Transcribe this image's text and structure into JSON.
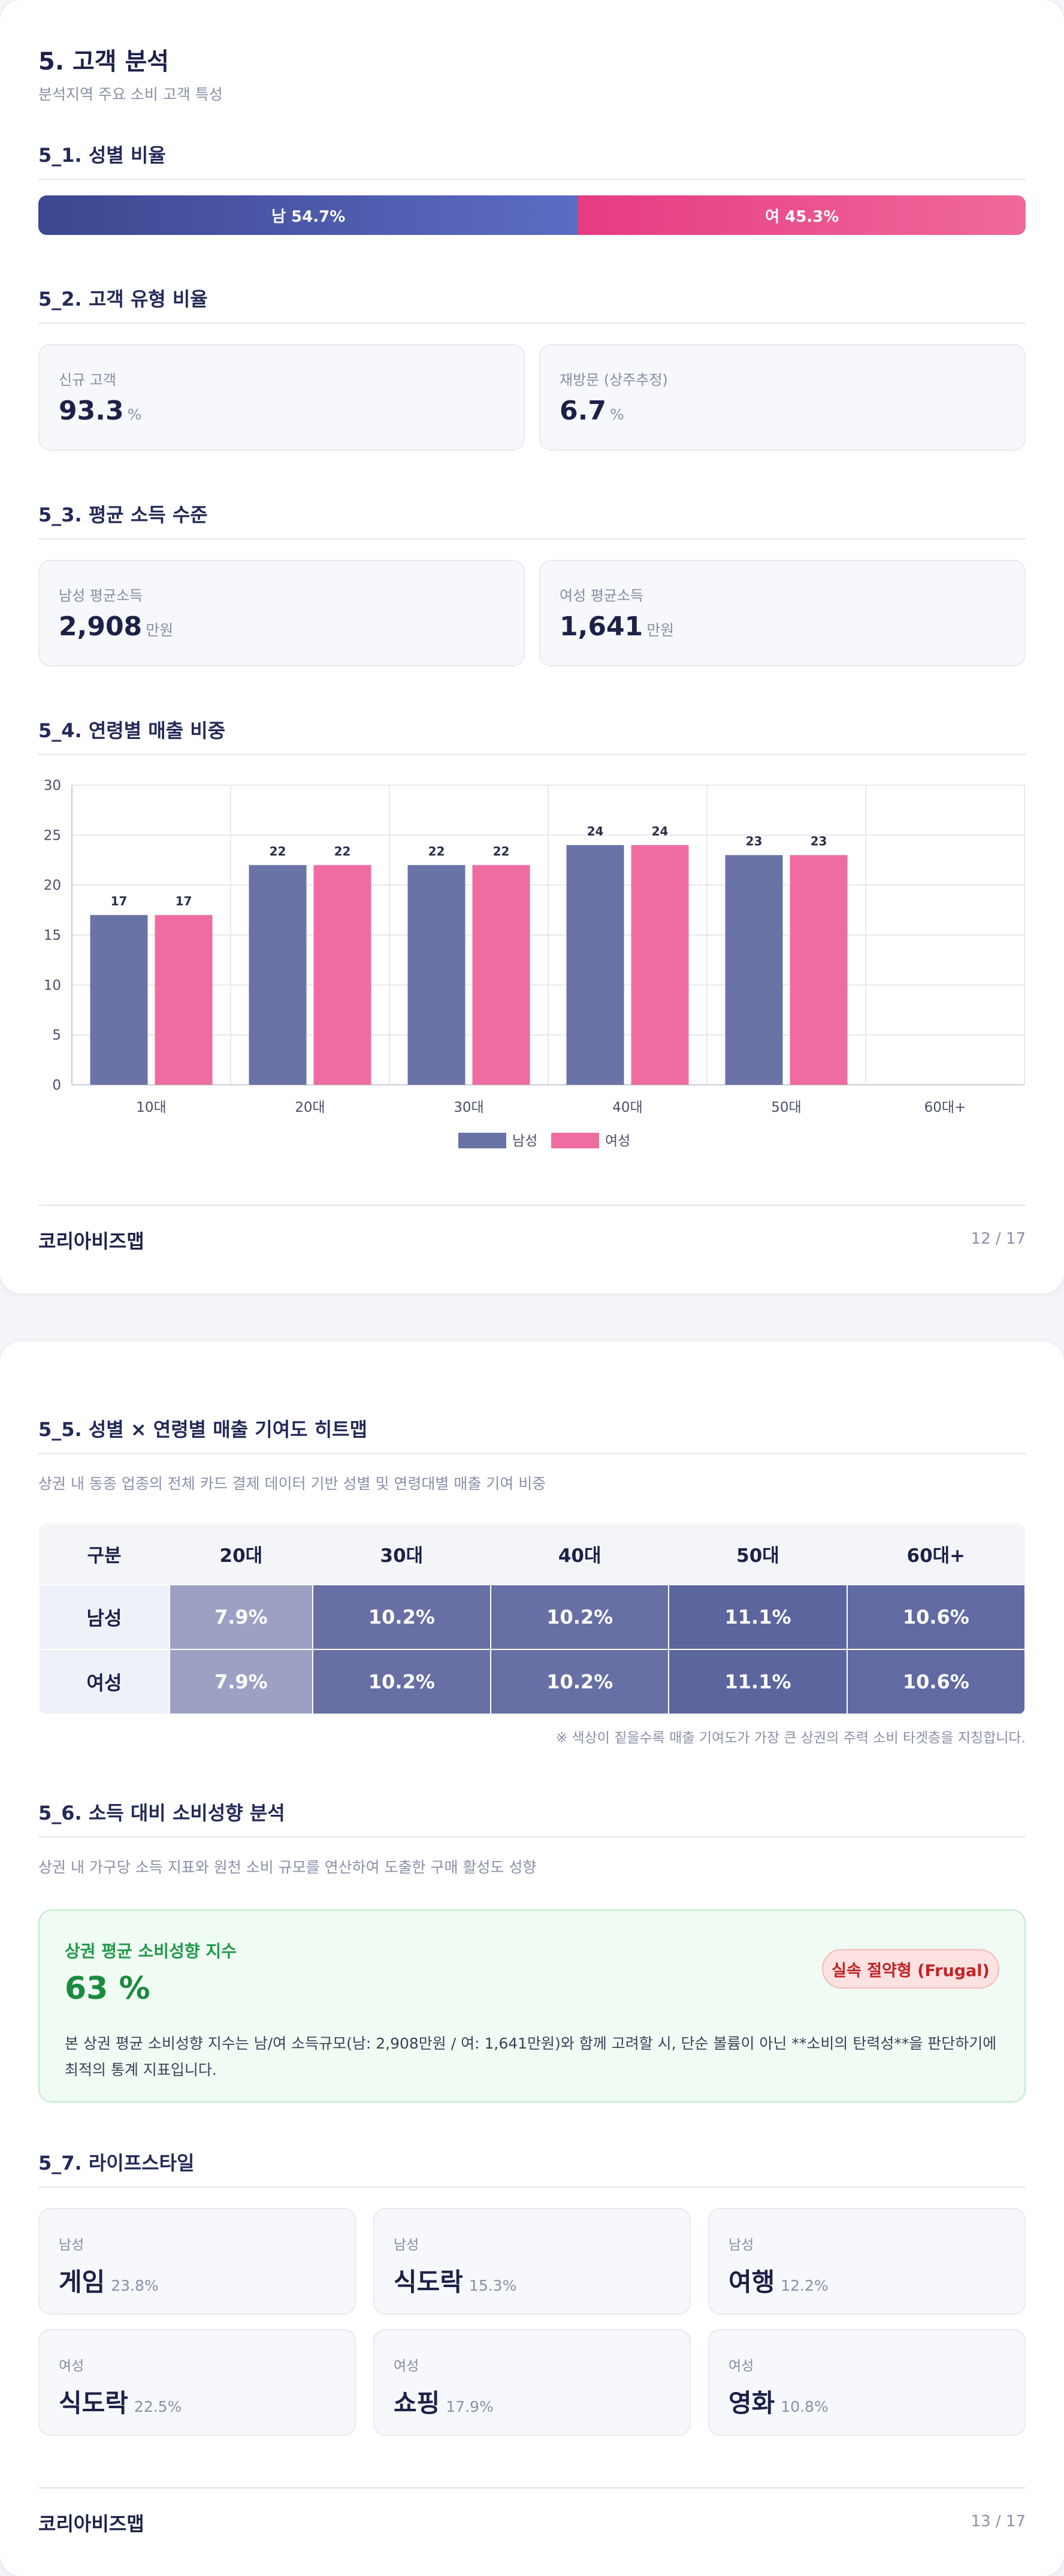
{
  "page1": {
    "title": "5. 고객 분석",
    "subtitle": "분석지역 주요 소비 고객 특성",
    "gender": {
      "heading": "5_1. 성별 비율",
      "male_label": "남 54.7%",
      "female_label": "여 45.3%",
      "male_share": 54.7,
      "female_share": 45.3,
      "colors": {
        "male": "#4a56a8",
        "female": "#eb4d8c"
      }
    },
    "customer_type": {
      "heading": "5_2. 고객 유형 비율",
      "new": {
        "label": "신규 고객",
        "value": "93.3",
        "unit": "%"
      },
      "returning": {
        "label": "재방문 (상주추정)",
        "value": "6.7",
        "unit": "%"
      }
    },
    "income": {
      "heading": "5_3. 평균 소득 수준",
      "male": {
        "label": "남성 평균소득",
        "value": "2,908",
        "unit": "만원"
      },
      "female": {
        "label": "여성 평균소득",
        "value": "1,641",
        "unit": "만원"
      }
    },
    "age_sales_heading": "5_4. 연령별 매출 비중",
    "footer": {
      "brand": "코리아비즈맵",
      "page": "12 / 17"
    }
  },
  "chart_data": {
    "type": "bar",
    "categories": [
      "10대",
      "20대",
      "30대",
      "40대",
      "50대",
      "60대+"
    ],
    "series": [
      {
        "name": "남성",
        "values": [
          17,
          22,
          22,
          24,
          23,
          null
        ],
        "color": "#6a73a6"
      },
      {
        "name": "여성",
        "values": [
          17,
          22,
          22,
          24,
          23,
          null
        ],
        "color": "#ee6c9f"
      }
    ],
    "ylim": [
      0,
      30
    ],
    "yticks": [
      0,
      5,
      10,
      15,
      20,
      25,
      30
    ],
    "grid": true,
    "legend": "bottom-center"
  },
  "page2": {
    "heatmap": {
      "heading": "5_5. 성별 × 연령별 매출 기여도 히트맵",
      "desc": "상권 내 동종 업종의 전체 카드 결제 데이터 기반 성별 및 연령대별 매출 기여 비중",
      "headers": [
        "구분",
        "20대",
        "30대",
        "40대",
        "50대",
        "60대+"
      ],
      "rows": [
        {
          "label": "남성",
          "cells": [
            "7.9%",
            "10.2%",
            "10.2%",
            "11.1%",
            "10.6%"
          ]
        },
        {
          "label": "여성",
          "cells": [
            "7.9%",
            "10.2%",
            "10.2%",
            "11.1%",
            "10.6%"
          ]
        }
      ],
      "cell_values": [
        7.9,
        10.2,
        10.2,
        11.1,
        10.6
      ],
      "note": "※ 색상이 짙을수록 매출 기여도가 가장 큰 상권의 주력 소비 타겟층을 지칭합니다."
    },
    "spending": {
      "heading": "5_6. 소득 대비 소비성향 분석",
      "desc": "상권 내 가구당 소득 지표와 원천 소비 규모를 연산하여 도출한 구매 활성도 성향",
      "label": "상권 평균 소비성향 지수",
      "value": "63 %",
      "badge": "실속 절약형 (Frugal)",
      "text": "본 상권 평균 소비성향 지수는 남/여 소득규모(남: 2,908만원 / 여: 1,641만원)와 함께 고려할 시, 단순 볼륨이 아닌 **소비의 탄력성**을 판단하기에 최적의 통계 지표입니다."
    },
    "lifestyle": {
      "heading": "5_7. 라이프스타일",
      "items": [
        {
          "gender": "남성",
          "name": "게임",
          "pct": "23.8%"
        },
        {
          "gender": "남성",
          "name": "식도락",
          "pct": "15.3%"
        },
        {
          "gender": "남성",
          "name": "여행",
          "pct": "12.2%"
        },
        {
          "gender": "여성",
          "name": "식도락",
          "pct": "22.5%"
        },
        {
          "gender": "여성",
          "name": "쇼핑",
          "pct": "17.9%"
        },
        {
          "gender": "여성",
          "name": "영화",
          "pct": "10.8%"
        }
      ]
    },
    "footer": {
      "brand": "코리아비즈맵",
      "page": "13 / 17"
    }
  }
}
